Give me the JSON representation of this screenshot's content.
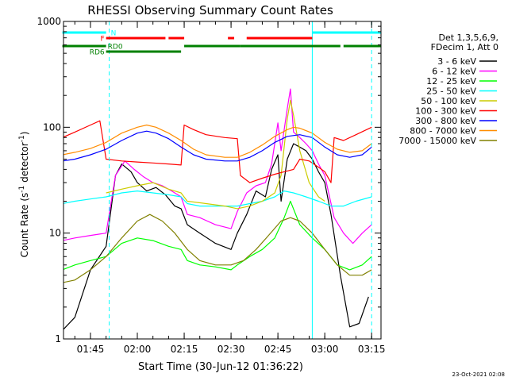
{
  "chart_data": {
    "type": "line",
    "title": "RHESSI Observing Summary Count Rates",
    "xlabel": "Start Time (30-Jun-12 01:36:22)",
    "ylabel": "Count Rate (s⁻¹ detector⁻¹)",
    "ylabel_parts": {
      "main": "Count Rate (s",
      "exp1": "-1",
      "mid": " detector",
      "exp2": "-1",
      "end": ")"
    },
    "y_scale": "log",
    "ylim": [
      1,
      1000
    ],
    "xlim": [
      "01:36:22",
      "03:18:00"
    ],
    "x_ticks": [
      "01:45",
      "02:00",
      "02:15",
      "02:30",
      "02:45",
      "03:00",
      "03:15"
    ],
    "y_ticks": [
      "1",
      "10",
      "100",
      "1000"
    ],
    "grid": false,
    "legend_position": "right",
    "legend_header": [
      "Det 1,3,5,6,9,",
      "FDecim 1, Att 0"
    ],
    "footer_date": "23-Oct-2021 02:08",
    "series": [
      {
        "name": "3 - 6 keV",
        "color": "#000000",
        "points": [
          [
            "01:36",
            1.2
          ],
          [
            "01:40",
            1.6
          ],
          [
            "01:45",
            4.5
          ],
          [
            "01:50",
            7.5
          ],
          [
            "01:53",
            35
          ],
          [
            "01:55",
            45
          ],
          [
            "01:58",
            38
          ],
          [
            "02:00",
            30
          ],
          [
            "02:03",
            25
          ],
          [
            "02:06",
            27
          ],
          [
            "02:09",
            23
          ],
          [
            "02:12",
            18
          ],
          [
            "02:14",
            17
          ],
          [
            "02:16",
            12
          ],
          [
            "02:20",
            10
          ],
          [
            "02:25",
            8
          ],
          [
            "02:30",
            7
          ],
          [
            "02:32",
            10
          ],
          [
            "02:35",
            15
          ],
          [
            "02:38",
            25
          ],
          [
            "02:41",
            22
          ],
          [
            "02:43",
            40
          ],
          [
            "02:45",
            55
          ],
          [
            "02:46",
            20
          ],
          [
            "02:48",
            50
          ],
          [
            "02:50",
            70
          ],
          [
            "02:52",
            65
          ],
          [
            "02:54",
            60
          ],
          [
            "02:56",
            50
          ],
          [
            "02:58",
            38
          ],
          [
            "03:00",
            30
          ],
          [
            "03:02",
            15
          ],
          [
            "03:05",
            4
          ],
          [
            "03:08",
            1.3
          ],
          [
            "03:11",
            1.4
          ],
          [
            "03:14",
            2.5
          ]
        ]
      },
      {
        "name": "6 - 12 keV",
        "color": "#ff00ff",
        "points": [
          [
            "01:36",
            8.5
          ],
          [
            "01:40",
            9
          ],
          [
            "01:45",
            9.5
          ],
          [
            "01:50",
            10
          ],
          [
            "01:53",
            35
          ],
          [
            "01:56",
            48
          ],
          [
            "01:59",
            40
          ],
          [
            "02:02",
            34
          ],
          [
            "02:05",
            30
          ],
          [
            "02:08",
            28
          ],
          [
            "02:11",
            25
          ],
          [
            "02:14",
            22
          ],
          [
            "02:16",
            15
          ],
          [
            "02:20",
            14
          ],
          [
            "02:25",
            12
          ],
          [
            "02:30",
            11
          ],
          [
            "02:32",
            16
          ],
          [
            "02:35",
            24
          ],
          [
            "02:38",
            28
          ],
          [
            "02:41",
            30
          ],
          [
            "02:43",
            45
          ],
          [
            "02:45",
            110
          ],
          [
            "02:46",
            60
          ],
          [
            "02:48",
            150
          ],
          [
            "02:49",
            230
          ],
          [
            "02:50",
            90
          ],
          [
            "02:52",
            80
          ],
          [
            "02:54",
            70
          ],
          [
            "02:56",
            60
          ],
          [
            "02:58",
            45
          ],
          [
            "03:00",
            35
          ],
          [
            "03:03",
            14
          ],
          [
            "03:06",
            10
          ],
          [
            "03:09",
            8
          ],
          [
            "03:12",
            10
          ],
          [
            "03:15",
            12
          ]
        ]
      },
      {
        "name": "12 - 25 keV",
        "color": "#00ff00",
        "points": [
          [
            "01:36",
            4.5
          ],
          [
            "01:40",
            5
          ],
          [
            "01:45",
            5.5
          ],
          [
            "01:50",
            6
          ],
          [
            "01:55",
            8
          ],
          [
            "02:00",
            9
          ],
          [
            "02:05",
            8.5
          ],
          [
            "02:10",
            7.5
          ],
          [
            "02:14",
            7
          ],
          [
            "02:16",
            5.5
          ],
          [
            "02:20",
            5
          ],
          [
            "02:25",
            4.8
          ],
          [
            "02:30",
            4.5
          ],
          [
            "02:32",
            5
          ],
          [
            "02:36",
            6
          ],
          [
            "02:40",
            7
          ],
          [
            "02:44",
            9
          ],
          [
            "02:47",
            14
          ],
          [
            "02:49",
            20
          ],
          [
            "02:52",
            12
          ],
          [
            "02:56",
            9
          ],
          [
            "03:00",
            7
          ],
          [
            "03:04",
            5
          ],
          [
            "03:08",
            4.5
          ],
          [
            "03:12",
            5
          ],
          [
            "03:15",
            6
          ]
        ]
      },
      {
        "name": "25 - 50 keV",
        "color": "#00ffff",
        "points": [
          [
            "01:36",
            19
          ],
          [
            "01:40",
            20
          ],
          [
            "01:45",
            21
          ],
          [
            "01:50",
            22
          ],
          [
            "01:55",
            24
          ],
          [
            "02:00",
            25
          ],
          [
            "02:05",
            24
          ],
          [
            "02:10",
            23
          ],
          [
            "02:14",
            22
          ],
          [
            "02:16",
            19
          ],
          [
            "02:20",
            18
          ],
          [
            "02:25",
            18
          ],
          [
            "02:30",
            18
          ],
          [
            "02:32",
            18
          ],
          [
            "02:36",
            19
          ],
          [
            "02:40",
            20
          ],
          [
            "02:44",
            22
          ],
          [
            "02:47",
            25
          ],
          [
            "02:50",
            24
          ],
          [
            "02:54",
            22
          ],
          [
            "02:58",
            20
          ],
          [
            "03:02",
            18
          ],
          [
            "03:06",
            18
          ],
          [
            "03:10",
            20
          ],
          [
            "03:15",
            22
          ]
        ]
      },
      {
        "name": "50 - 100 keV",
        "color": "#cccc00",
        "points": [
          [
            "01:50",
            24
          ],
          [
            "01:55",
            26
          ],
          [
            "02:00",
            28
          ],
          [
            "02:05",
            30
          ],
          [
            "02:10",
            26
          ],
          [
            "02:14",
            24
          ],
          [
            "02:16",
            20
          ],
          [
            "02:22",
            19
          ],
          [
            "02:28",
            18
          ],
          [
            "02:32",
            17
          ],
          [
            "02:36",
            18
          ],
          [
            "02:40",
            20
          ],
          [
            "02:44",
            24
          ],
          [
            "02:46",
            35
          ],
          [
            "02:48",
            120
          ],
          [
            "02:49",
            180
          ],
          [
            "02:50",
            130
          ],
          [
            "02:52",
            60
          ],
          [
            "02:55",
            30
          ],
          [
            "02:58",
            22
          ],
          [
            "03:00",
            20
          ]
        ]
      },
      {
        "name": "100 - 300 keV",
        "color": "#ff0000",
        "points": [
          [
            "01:36",
            80
          ],
          [
            "01:40",
            90
          ],
          [
            "01:45",
            105
          ],
          [
            "01:48",
            115
          ],
          [
            "01:50",
            50
          ],
          [
            "01:55",
            48
          ],
          [
            "02:00",
            47
          ],
          [
            "02:05",
            46
          ],
          [
            "02:10",
            45
          ],
          [
            "02:14",
            44
          ],
          [
            "02:15",
            105
          ],
          [
            "02:18",
            95
          ],
          [
            "02:22",
            85
          ],
          [
            "02:28",
            80
          ],
          [
            "02:32",
            78
          ],
          [
            "02:33",
            35
          ],
          [
            "02:36",
            30
          ],
          [
            "02:40",
            33
          ],
          [
            "02:44",
            36
          ],
          [
            "02:47",
            38
          ],
          [
            "02:50",
            40
          ],
          [
            "02:52",
            50
          ],
          [
            "02:55",
            48
          ],
          [
            "02:58",
            42
          ],
          [
            "03:00",
            38
          ],
          [
            "03:02",
            30
          ],
          [
            "03:03",
            80
          ],
          [
            "03:06",
            75
          ],
          [
            "03:10",
            85
          ],
          [
            "03:15",
            100
          ]
        ]
      },
      {
        "name": "300 - 800 keV",
        "color": "#0000ff",
        "points": [
          [
            "01:36",
            48
          ],
          [
            "01:40",
            50
          ],
          [
            "01:45",
            55
          ],
          [
            "01:50",
            62
          ],
          [
            "01:55",
            75
          ],
          [
            "02:00",
            88
          ],
          [
            "02:03",
            92
          ],
          [
            "02:06",
            88
          ],
          [
            "02:10",
            78
          ],
          [
            "02:14",
            65
          ],
          [
            "02:18",
            55
          ],
          [
            "02:22",
            50
          ],
          [
            "02:28",
            48
          ],
          [
            "02:32",
            48
          ],
          [
            "02:36",
            52
          ],
          [
            "02:40",
            60
          ],
          [
            "02:44",
            72
          ],
          [
            "02:48",
            82
          ],
          [
            "02:52",
            85
          ],
          [
            "02:56",
            80
          ],
          [
            "03:00",
            65
          ],
          [
            "03:04",
            55
          ],
          [
            "03:08",
            52
          ],
          [
            "03:12",
            55
          ],
          [
            "03:15",
            65
          ]
        ]
      },
      {
        "name": "800 - 7000 keV",
        "color": "#ff8c00",
        "points": [
          [
            "01:36",
            55
          ],
          [
            "01:40",
            58
          ],
          [
            "01:45",
            63
          ],
          [
            "01:50",
            72
          ],
          [
            "01:55",
            88
          ],
          [
            "02:00",
            100
          ],
          [
            "02:03",
            105
          ],
          [
            "02:06",
            100
          ],
          [
            "02:10",
            88
          ],
          [
            "02:14",
            75
          ],
          [
            "02:18",
            62
          ],
          [
            "02:22",
            55
          ],
          [
            "02:28",
            52
          ],
          [
            "02:32",
            52
          ],
          [
            "02:36",
            58
          ],
          [
            "02:40",
            68
          ],
          [
            "02:44",
            82
          ],
          [
            "02:48",
            95
          ],
          [
            "02:50",
            100
          ],
          [
            "02:52",
            98
          ],
          [
            "02:56",
            88
          ],
          [
            "03:00",
            72
          ],
          [
            "03:04",
            62
          ],
          [
            "03:08",
            58
          ],
          [
            "03:12",
            60
          ],
          [
            "03:15",
            70
          ]
        ]
      },
      {
        "name": "7000 - 15000 keV",
        "color": "#808000",
        "points": [
          [
            "01:36",
            3.4
          ],
          [
            "01:40",
            3.6
          ],
          [
            "01:45",
            4.5
          ],
          [
            "01:50",
            6
          ],
          [
            "01:55",
            9
          ],
          [
            "02:00",
            13
          ],
          [
            "02:04",
            15
          ],
          [
            "02:08",
            13
          ],
          [
            "02:12",
            10
          ],
          [
            "02:16",
            7
          ],
          [
            "02:20",
            5.5
          ],
          [
            "02:25",
            5
          ],
          [
            "02:30",
            5
          ],
          [
            "02:34",
            5.5
          ],
          [
            "02:38",
            7
          ],
          [
            "02:42",
            9.5
          ],
          [
            "02:46",
            13
          ],
          [
            "02:49",
            14
          ],
          [
            "02:52",
            13
          ],
          [
            "02:56",
            10
          ],
          [
            "03:00",
            7
          ],
          [
            "03:04",
            5
          ],
          [
            "03:08",
            4
          ],
          [
            "03:12",
            4
          ],
          [
            "03:15",
            4.5
          ]
        ]
      }
    ],
    "state_bars": [
      {
        "label": "N",
        "label_color": "#00ffff",
        "level": "top",
        "color": "#00ffff",
        "segments": [
          [
            "01:36",
            "01:50"
          ],
          [
            "02:56",
            "03:18"
          ]
        ]
      },
      {
        "label": "F",
        "label_color": "#ff0000",
        "level": "second",
        "color": "#ff0000",
        "segments": [
          [
            "01:50",
            "02:09"
          ],
          [
            "02:10",
            "02:15"
          ],
          [
            "02:29",
            "02:31"
          ],
          [
            "02:35",
            "02:56"
          ]
        ]
      },
      {
        "label": "RD0",
        "label_color": "#008000",
        "level": "third",
        "color": "#008000",
        "segments": [
          [
            "01:36",
            "01:50"
          ],
          [
            "02:15",
            "02:33"
          ],
          [
            "02:33",
            "03:05"
          ],
          [
            "03:06",
            "03:18"
          ]
        ]
      },
      {
        "label": "RD6",
        "label_color": "#008000",
        "level": "fourth",
        "color": "#008000",
        "segments": [
          [
            "01:50",
            "02:14"
          ]
        ]
      }
    ],
    "vertical_markers": [
      {
        "time": "01:36:22",
        "style": "solid",
        "color": "#00ffff"
      },
      {
        "time": "01:51",
        "style": "dashed",
        "color": "#00ffff"
      },
      {
        "time": "02:56",
        "style": "solid",
        "color": "#00ffff"
      },
      {
        "time": "03:15",
        "style": "dashed",
        "color": "#00ffff"
      }
    ]
  }
}
